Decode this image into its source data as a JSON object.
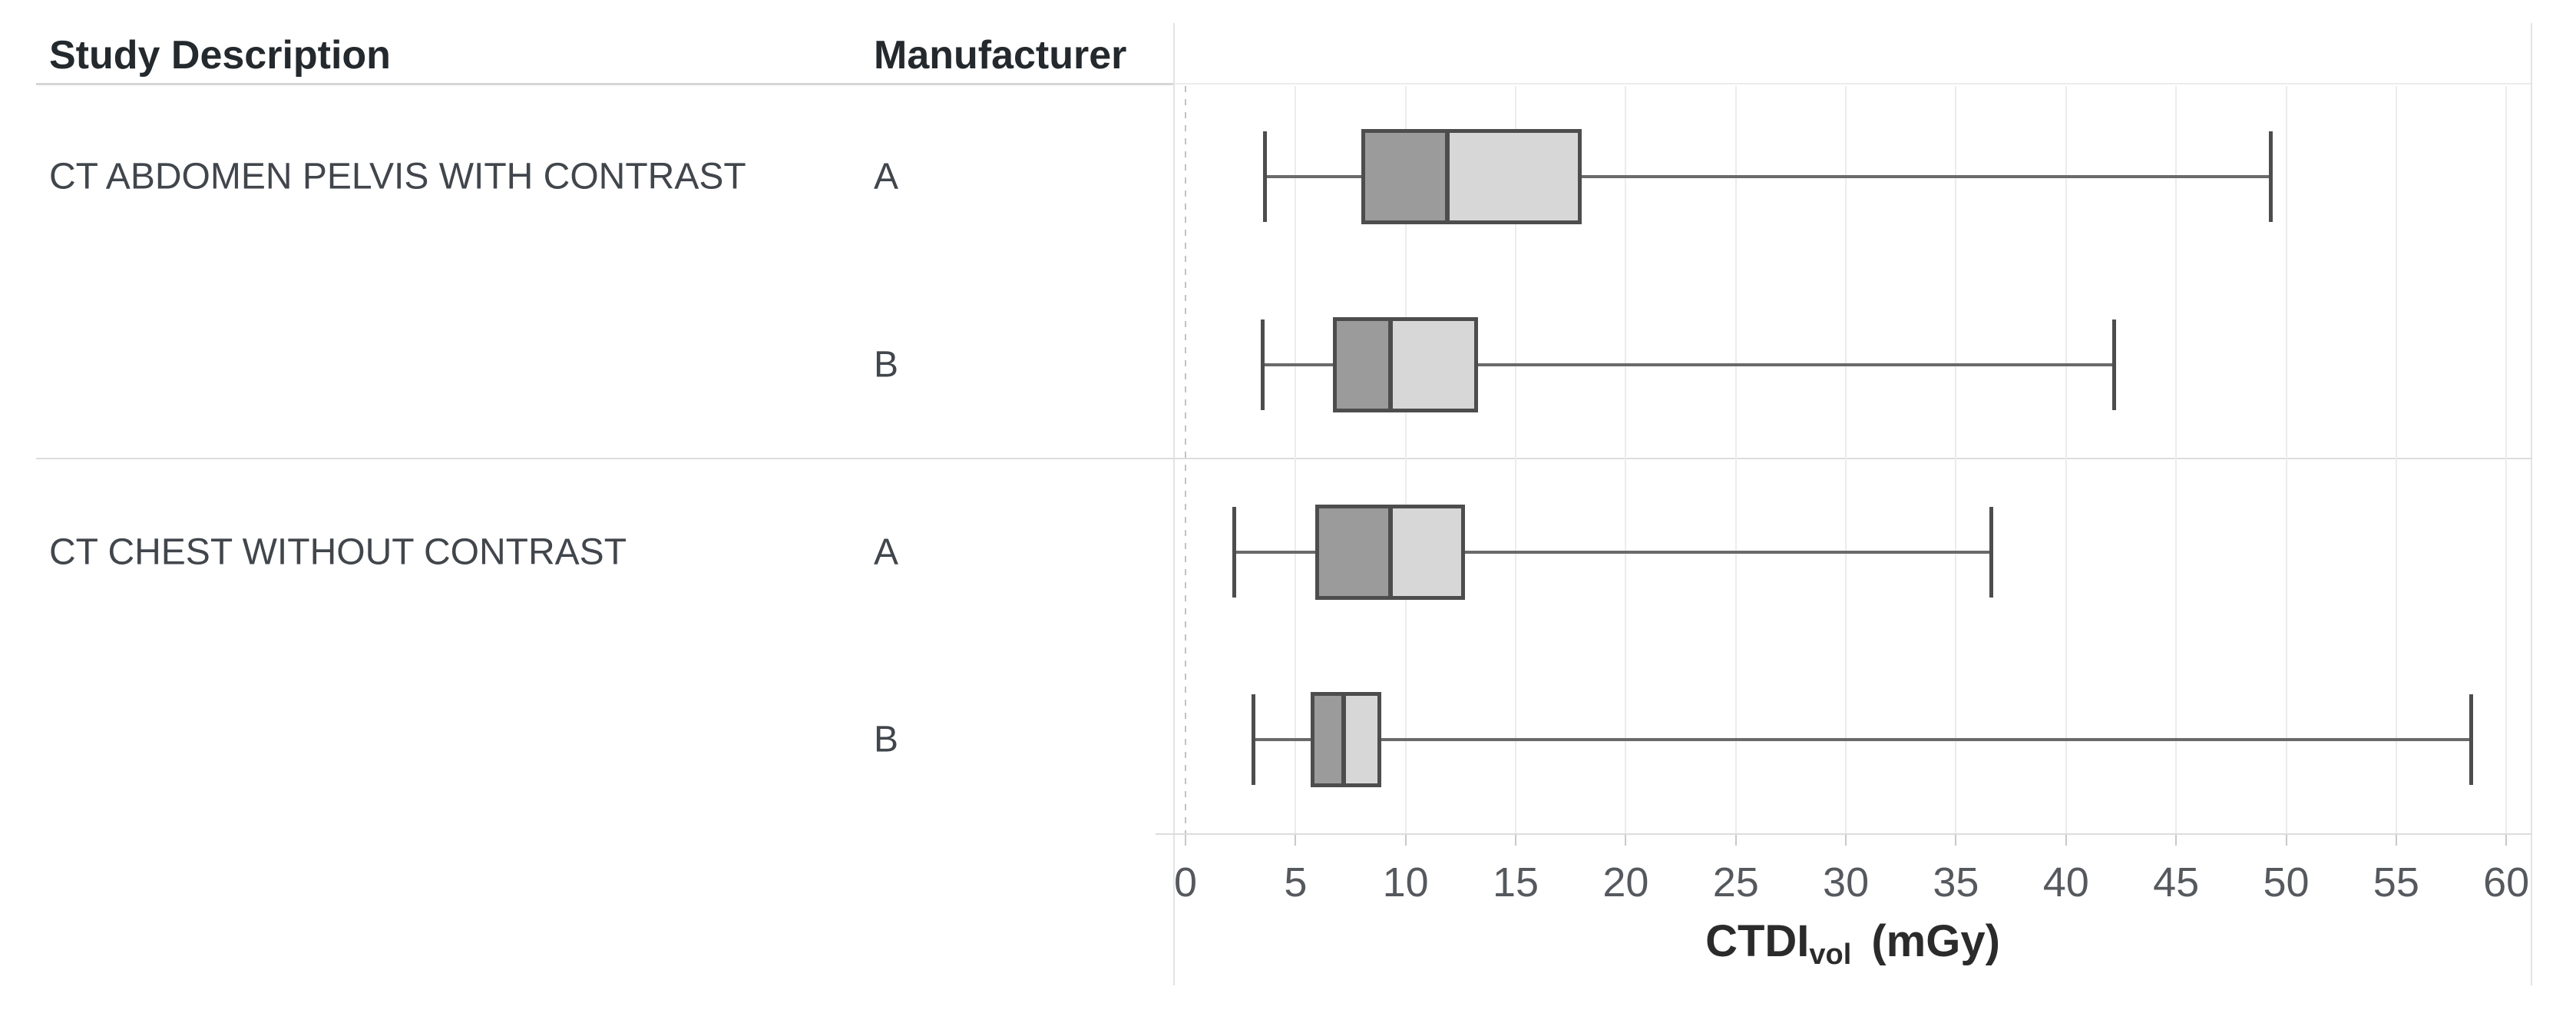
{
  "header": {
    "study_description": "Study Description",
    "manufacturer": "Manufacturer"
  },
  "chart_data": {
    "type": "boxplot",
    "orientation": "horizontal",
    "value_unit": "mGy",
    "xlabel": {
      "main": "CTDI",
      "sub": "vol",
      "unit": "(mGy)"
    },
    "xlim": [
      0,
      61
    ],
    "x_ticks": [
      0,
      5,
      10,
      15,
      20,
      25,
      30,
      35,
      40,
      45,
      50,
      55,
      60
    ],
    "x_tick_labels": [
      "0",
      "5",
      "10",
      "15",
      "20",
      "25",
      "30",
      "35",
      "40",
      "45",
      "50",
      "55",
      "60"
    ],
    "grid": "vertical-light",
    "groups": [
      {
        "study": "CT ABDOMEN PELVIS WITH CONTRAST",
        "rows": [
          {
            "manufacturer": "A",
            "whisker_low": 3.6,
            "q1": 8.0,
            "median": 11.9,
            "q3": 18.0,
            "whisker_high": 49.3
          },
          {
            "manufacturer": "B",
            "whisker_low": 3.5,
            "q1": 6.7,
            "median": 9.3,
            "q3": 13.3,
            "whisker_high": 42.2
          }
        ]
      },
      {
        "study": "CT CHEST WITHOUT CONTRAST",
        "rows": [
          {
            "manufacturer": "A",
            "whisker_low": 2.2,
            "q1": 5.9,
            "median": 9.3,
            "q3": 12.7,
            "whisker_high": 36.6
          },
          {
            "manufacturer": "B",
            "whisker_low": 3.1,
            "q1": 5.7,
            "median": 7.2,
            "q3": 8.9,
            "whisker_high": 58.4
          }
        ]
      }
    ],
    "colors": {
      "box_lower_fill": "#9b9b9b",
      "box_upper_fill": "#d7d7d7",
      "box_border": "#4d4d4d",
      "median": "#4d4d4d",
      "whisker_line": "#6a6a6a",
      "whisker_cap": "#4d4d4d",
      "gridline": "#ececec",
      "zero_line": "#c2c2c2",
      "axis_line": "#dcdcdc",
      "divider": "#dcdcdc",
      "header_rule": "#d6d6d6"
    }
  }
}
